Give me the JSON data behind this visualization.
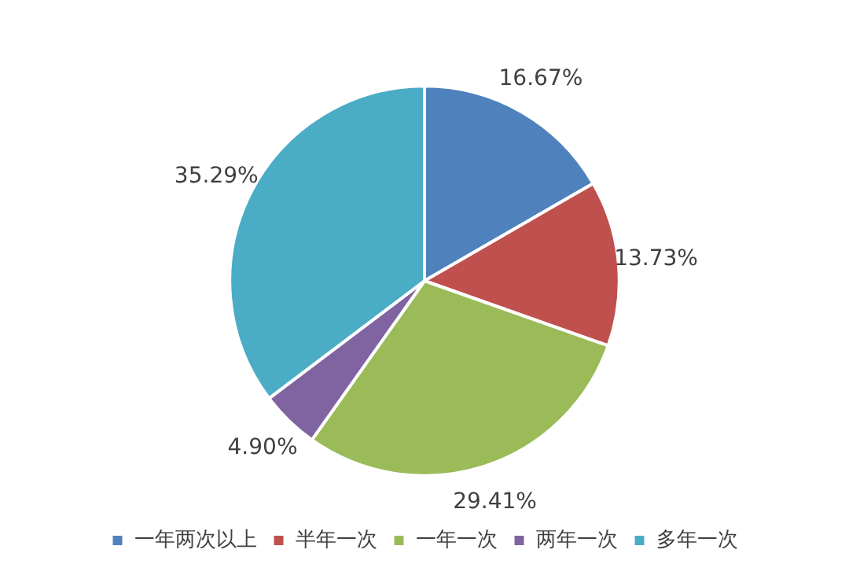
{
  "chart_data": {
    "type": "pie",
    "categories": [
      "一年两次以上",
      "半年一次",
      "一年一次",
      "两年一次",
      "多年一次"
    ],
    "values": [
      16.67,
      13.73,
      29.41,
      4.9,
      35.29
    ],
    "value_labels": [
      "16.67%",
      "13.73%",
      "29.41%",
      "4.90%",
      "35.29%"
    ],
    "colors": [
      "#4f81bd",
      "#c0504d",
      "#9bbb59",
      "#8064a2",
      "#4bacc6"
    ],
    "legend": "bottom"
  }
}
